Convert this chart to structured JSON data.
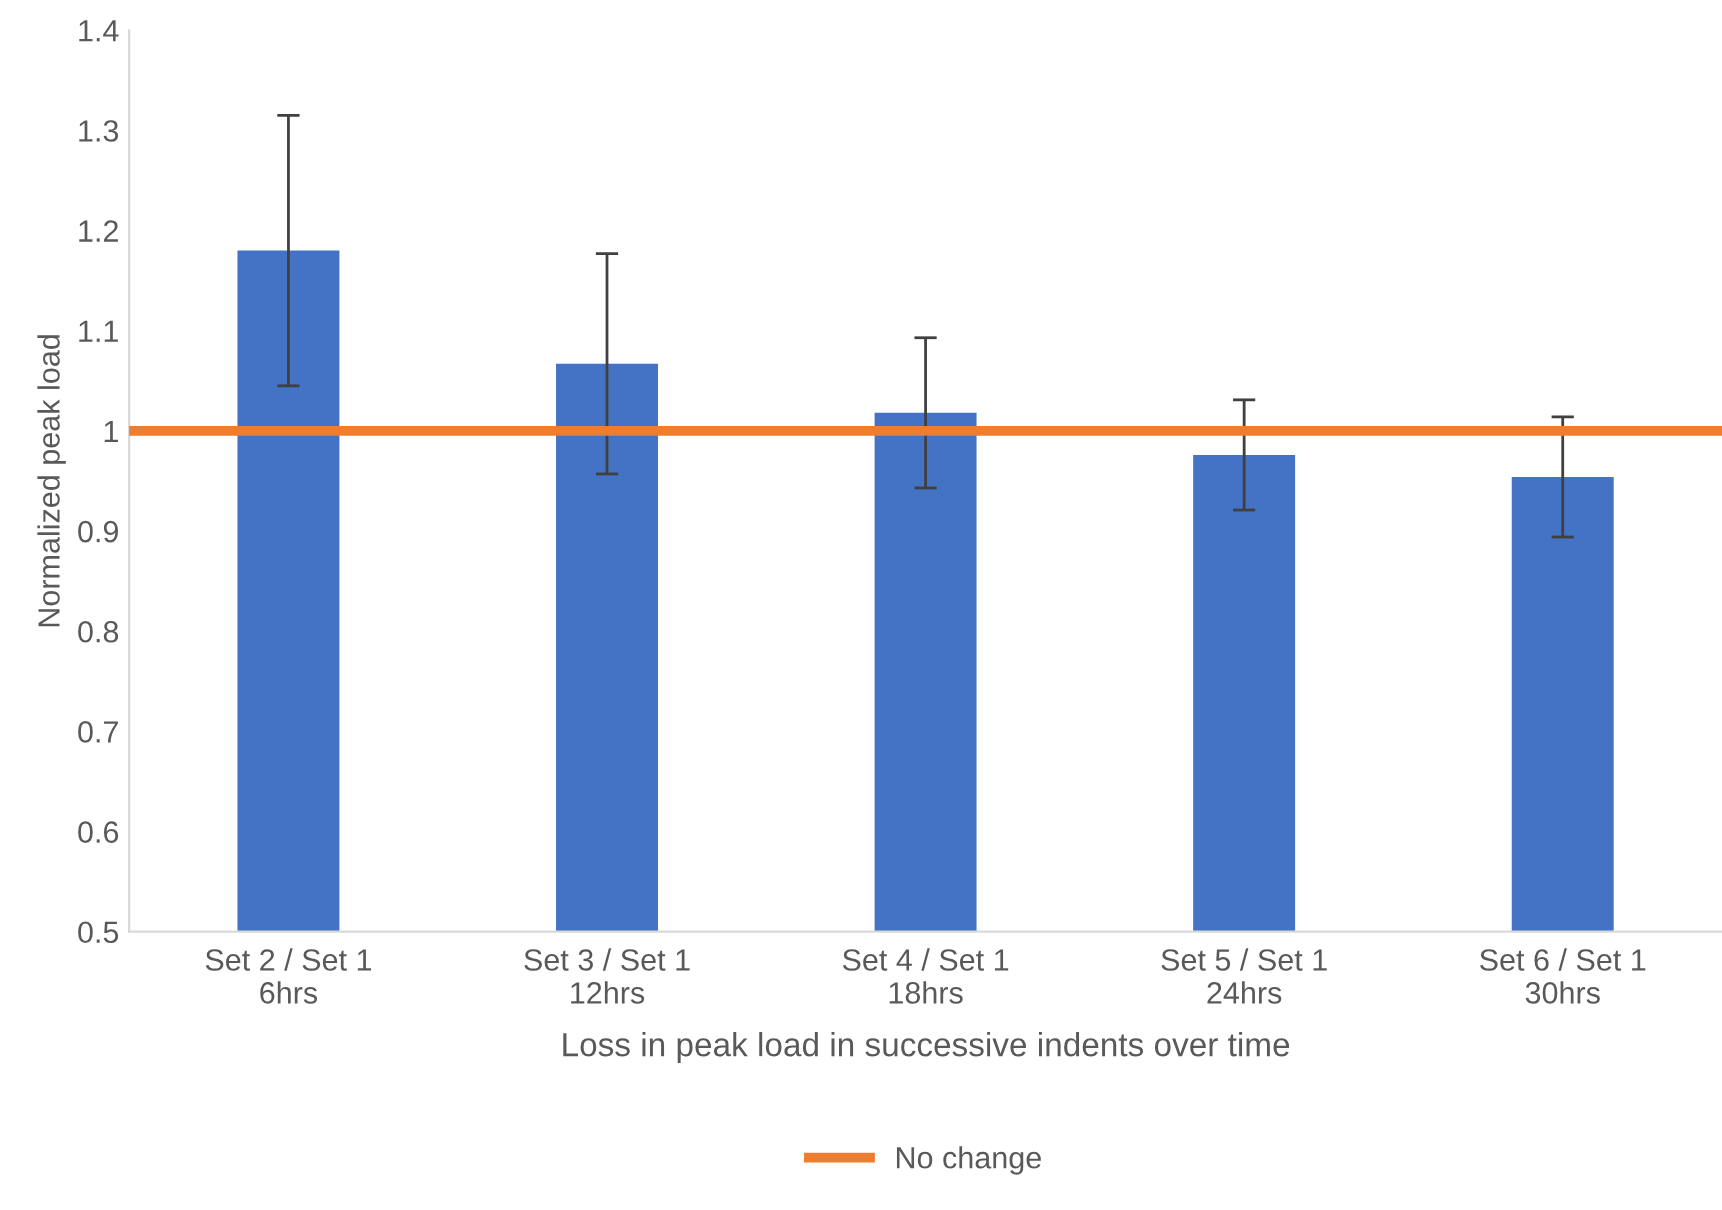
{
  "chart_data": {
    "type": "bar",
    "xlabel": "Loss in peak load in successive indents over time",
    "ylabel": "Normalized peak load",
    "categories": [
      "Set 2 / Set 1\n6hrs",
      "Set 3 / Set 1\n12hrs",
      "Set 4 / Set 1\n18hrs",
      "Set 5 / Set 1\n24hrs",
      "Set 6 / Set 1\n30hrs"
    ],
    "values": [
      1.18,
      1.067,
      1.018,
      0.976,
      0.954
    ],
    "errors": [
      0.135,
      0.11,
      0.075,
      0.055,
      0.06
    ],
    "color": "#4472c4",
    "ylim": [
      0.5,
      1.4
    ],
    "yticks": [
      0.5,
      0.6,
      0.7,
      0.8,
      0.9,
      1,
      1.1,
      1.2,
      1.3,
      1.4
    ],
    "ref_lines": [
      {
        "axis": "y",
        "value": 1,
        "label": "No change",
        "color": "#ed7d31"
      }
    ],
    "grid": false,
    "legend": "bottom"
  }
}
